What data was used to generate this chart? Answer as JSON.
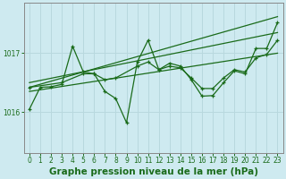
{
  "bg_color": "#ceeaf0",
  "grid_color": "#b8d8de",
  "line_color": "#1a6b1a",
  "title": "Graphe pression niveau de la mer (hPa)",
  "xlim": [
    -0.5,
    23.5
  ],
  "ylim": [
    1015.3,
    1017.85
  ],
  "yticks": [
    1016,
    1017
  ],
  "xticks": [
    0,
    1,
    2,
    3,
    4,
    5,
    6,
    7,
    8,
    9,
    10,
    11,
    12,
    13,
    14,
    15,
    16,
    17,
    18,
    19,
    20,
    21,
    22,
    23
  ],
  "title_color": "#1a6b1a",
  "title_fontsize": 7.5,
  "tick_fontsize": 5.5,
  "line1_x": [
    0,
    1,
    2,
    3,
    4,
    5,
    6,
    7,
    8,
    9,
    10,
    11,
    12,
    13,
    14,
    15,
    16,
    17,
    18,
    19,
    20,
    21,
    22,
    23
  ],
  "line1_y": [
    1016.05,
    1016.42,
    1016.43,
    1016.47,
    1017.12,
    1016.68,
    1016.65,
    1016.35,
    1016.23,
    1015.82,
    1016.85,
    1017.22,
    1016.72,
    1016.83,
    1016.78,
    1016.55,
    1016.27,
    1016.28,
    1016.5,
    1016.7,
    1016.65,
    1017.08,
    1017.08,
    1017.52
  ],
  "line2_x": [
    0,
    3,
    5,
    6,
    7,
    8,
    10,
    11,
    12,
    13,
    14,
    15,
    16,
    17,
    18,
    19,
    20,
    21,
    22,
    23
  ],
  "line2_y": [
    1016.42,
    1016.5,
    1016.65,
    1016.65,
    1016.55,
    1016.58,
    1016.78,
    1016.85,
    1016.72,
    1016.78,
    1016.75,
    1016.58,
    1016.4,
    1016.4,
    1016.58,
    1016.72,
    1016.68,
    1016.92,
    1016.98,
    1017.22
  ],
  "line3_x": [
    0,
    23
  ],
  "line3_y": [
    1016.35,
    1017.0
  ],
  "line4_x": [
    0,
    23
  ],
  "line4_y": [
    1016.5,
    1017.35
  ],
  "line5_x": [
    0,
    23
  ],
  "line5_y": [
    1016.42,
    1017.62
  ]
}
